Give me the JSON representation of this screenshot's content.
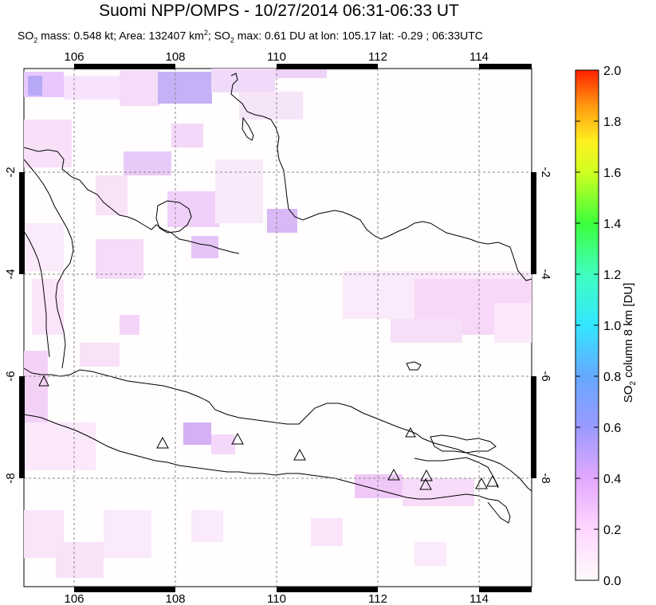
{
  "title": "Suomi NPP/OMPS - 10/27/2014 06:31-06:33 UT",
  "subtitle": {
    "so2_mass_label": "SO",
    "so2_mass_text": " mass: 0.548 kt; Area: 132407 km",
    "so2_max_text": "; SO",
    "so2_max_rest": " max: 0.61 DU at lon: 105.17 lat: -0.29 ; 06:33UTC"
  },
  "map": {
    "lon_ticks": [
      "106",
      "108",
      "110",
      "112",
      "114"
    ],
    "lat_ticks": [
      "-2",
      "-4",
      "-6",
      "-8"
    ],
    "volcano_count": 11
  },
  "colorbar": {
    "ticks": [
      "2.0",
      "1.8",
      "1.6",
      "1.4",
      "1.2",
      "1.0",
      "0.8",
      "0.6",
      "0.4",
      "0.2",
      "0.0"
    ],
    "label_prefix": "SO",
    "label_suffix": " column 8 km [DU]",
    "colors": [
      "#fffafa",
      "#ffd6ff",
      "#e0a8ff",
      "#9a9aff",
      "#5f9cff",
      "#33e0ff",
      "#40ffc0",
      "#3cff3c",
      "#c8ff20",
      "#fff020",
      "#ffb020",
      "#ff6010",
      "#ff2000"
    ]
  }
}
